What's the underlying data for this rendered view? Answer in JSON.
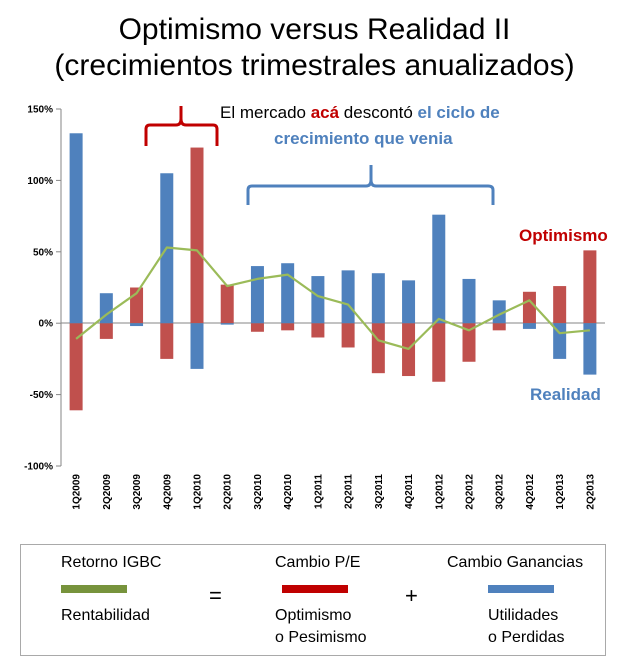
{
  "title_line1": "Optimismo versus Realidad II",
  "title_line2": "(crecimientos trimestrales anualizados)",
  "annotation": {
    "part1": "El mercado ",
    "part2": "acá",
    "part3": " descontó ",
    "part4": "el ciclo de",
    "line2": "crecimiento que venia"
  },
  "label_optimismo": "Optimismo",
  "label_realidad": "Realidad",
  "colors": {
    "red": "#c0504d",
    "blue": "#4f81bd",
    "green": "#9bbb59",
    "dark_red": "#c00000",
    "legend_red": "#c00000",
    "legend_blue": "#4f81bd",
    "legend_green": "#77933c"
  },
  "legend": {
    "retorno": "Retorno IGBC",
    "cambio_pe": "Cambio P/E",
    "cambio_gan": "Cambio Ganancias",
    "equals": "=",
    "plus": "+",
    "rentabilidad": "Rentabilidad",
    "optimismo_1": "Optimismo",
    "optimismo_2": "o Pesimismo",
    "utilidades_1": "Utilidades",
    "utilidades_2": "o Perdidas"
  },
  "chart_data": {
    "type": "bar",
    "title": "Optimismo versus Realidad II (crecimientos trimestrales anualizados)",
    "categories": [
      "1Q2009",
      "2Q2009",
      "3Q2009",
      "4Q2009",
      "1Q2010",
      "2Q2010",
      "3Q2010",
      "4Q2010",
      "1Q2011",
      "2Q2011",
      "3Q2011",
      "4Q2011",
      "1Q2012",
      "2Q2012",
      "3Q2012",
      "4Q2012",
      "1Q2013",
      "2Q2013"
    ],
    "series": [
      {
        "name": "Cambio P/E",
        "type": "bar",
        "values": [
          -61,
          -11,
          25,
          -25,
          123,
          27,
          -6,
          -5,
          -10,
          -17,
          -35,
          -37,
          -41,
          -27,
          -5,
          22,
          26,
          51
        ]
      },
      {
        "name": "Cambio Ganancias",
        "type": "bar",
        "values": [
          133,
          21,
          -2,
          105,
          -32,
          -1,
          40,
          42,
          33,
          37,
          35,
          30,
          76,
          31,
          16,
          -4,
          -25,
          -36
        ]
      },
      {
        "name": "Retorno IGBC",
        "type": "line",
        "values": [
          -11,
          6,
          21,
          53,
          51,
          26,
          31,
          34,
          19,
          13,
          -12,
          -18,
          3,
          -5,
          6,
          16,
          -7,
          -5
        ]
      }
    ],
    "y_ticks": [
      "150%",
      "100%",
      "50%",
      "0%",
      "-50%",
      "-100%"
    ],
    "ylim": [
      -100,
      150
    ],
    "grid": false
  }
}
